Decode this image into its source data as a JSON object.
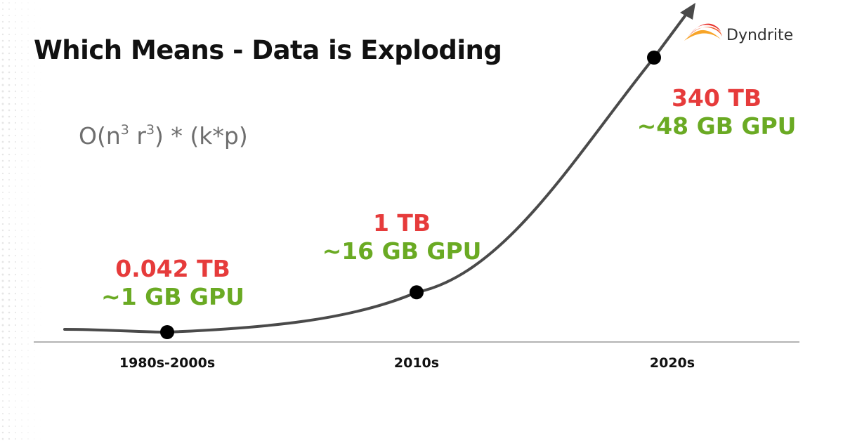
{
  "title": "Which Means - Data is Exploding",
  "formula": {
    "prefix": "O(n",
    "exp1": "3",
    "mid": "r",
    "exp2": "3",
    "suffix": ") * (k*p)"
  },
  "logo": {
    "text": "Dyndrite",
    "icon": "flame-logo-icon"
  },
  "colors": {
    "tb": "#e63b3b",
    "gpu": "#6aaa23",
    "curve": "#4a4a4a",
    "axis": "#9a9a9a",
    "title": "#111111"
  },
  "chart_data": {
    "type": "line",
    "categories": [
      "1980s-2000s",
      "2010s",
      "2020s"
    ],
    "series": [
      {
        "values": [
          0.042,
          1,
          340
        ],
        "point_labels": [
          {
            "tb": "0.042 TB",
            "gpu": "~1 GB GPU"
          },
          {
            "tb": "1 TB",
            "gpu": "~16 GB GPU"
          },
          {
            "tb": "340 TB",
            "gpu": "~48 GB GPU"
          }
        ]
      }
    ],
    "xlabel": "",
    "ylabel": "",
    "grid": false,
    "legend": "none",
    "arrowhead": true
  }
}
